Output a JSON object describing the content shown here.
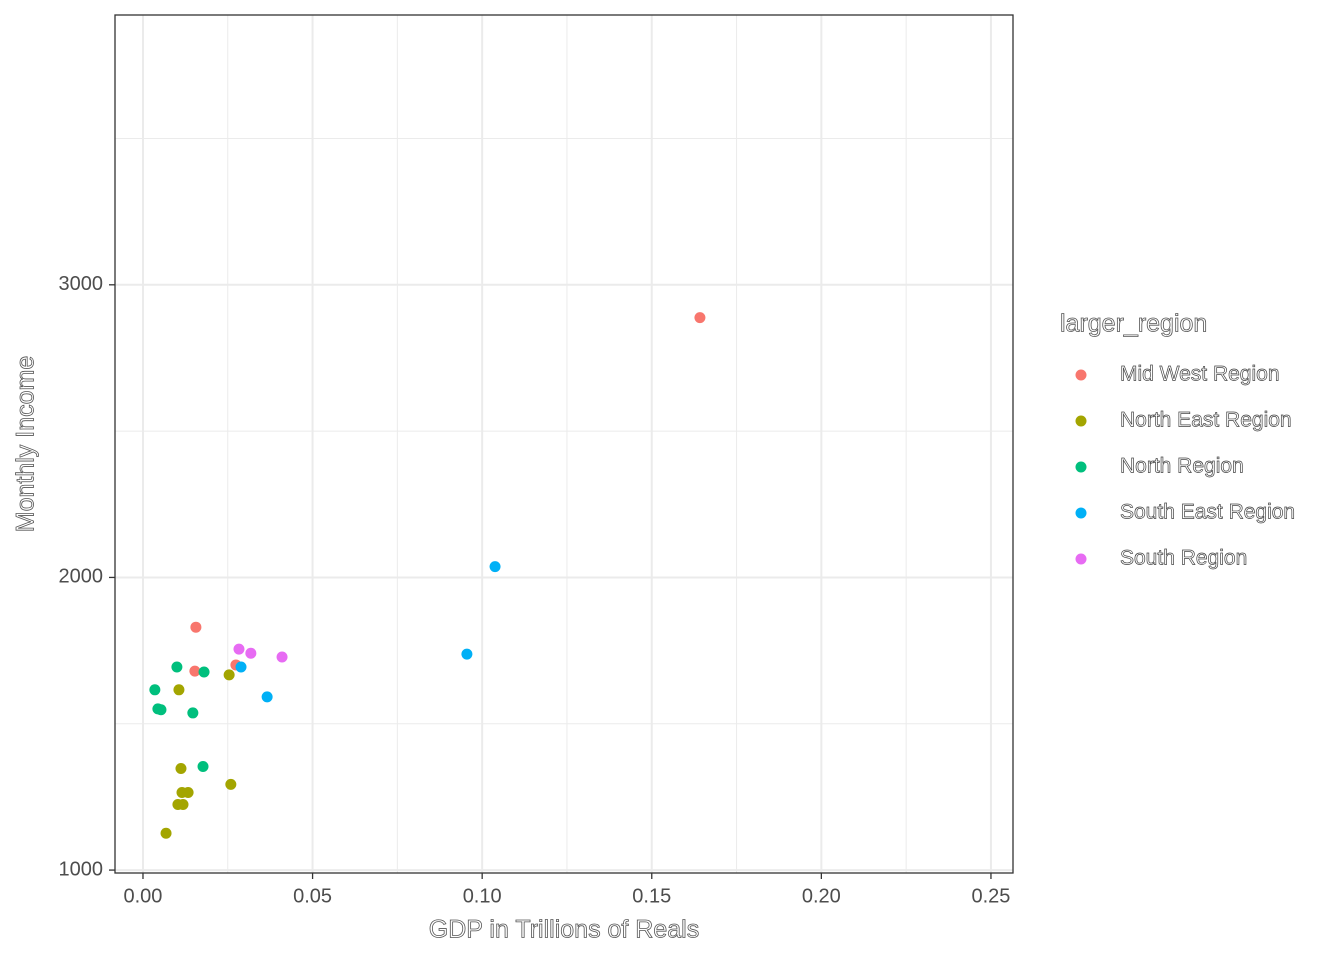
{
  "chart_data": {
    "type": "scatter",
    "x_label": "GDP in Trillions of Reals",
    "y_label": "Monthly Income",
    "legend_title": "larger_region",
    "legend_position": "right",
    "grid": true,
    "xlim": [
      -0.00825,
      0.2565
    ],
    "ylim": [
      990,
      3922
    ],
    "xticks": [
      {
        "value": 0,
        "label": "0.00"
      },
      0.05,
      {
        "value": 0.1,
        "label": "0.10"
      },
      0.15,
      {
        "value": 0.2,
        "label": "0.20"
      },
      0.25
    ],
    "yticks": [
      1000,
      2000,
      3000
    ],
    "series": [
      {
        "name": "Mid West Region",
        "color": "#F8766D",
        "x": [
          0.1642,
          0.0156,
          0.0153,
          0.0274
        ],
        "values": [
          2888,
          1830,
          1680,
          1701
        ]
      },
      {
        "name": "North East Region",
        "color": "#A3A500",
        "x": [
          0.0106,
          0.0254,
          0.0112,
          0.0259,
          0.0115,
          0.0133,
          0.0103,
          0.0118,
          0.0068
        ],
        "values": [
          1616,
          1667,
          1347,
          1293,
          1265,
          1265,
          1224,
          1224,
          1126
        ]
      },
      {
        "name": "North Region",
        "color": "#00BF7D",
        "x": [
          0.01,
          0.018,
          0.0035,
          0.0044,
          0.0053,
          0.0147,
          0.0177
        ],
        "values": [
          1694,
          1677,
          1616,
          1551,
          1548,
          1537,
          1354
        ]
      },
      {
        "name": "South East Region",
        "color": "#00B0F6",
        "x": [
          0.1038,
          0.0955,
          0.0366,
          0.0289
        ],
        "values": [
          2037,
          1738,
          1592,
          1694
        ]
      },
      {
        "name": "South Region",
        "color": "#E76BF3",
        "x": [
          0.0283,
          0.0318,
          0.041
        ],
        "values": [
          1755,
          1741,
          1728
        ]
      }
    ]
  }
}
